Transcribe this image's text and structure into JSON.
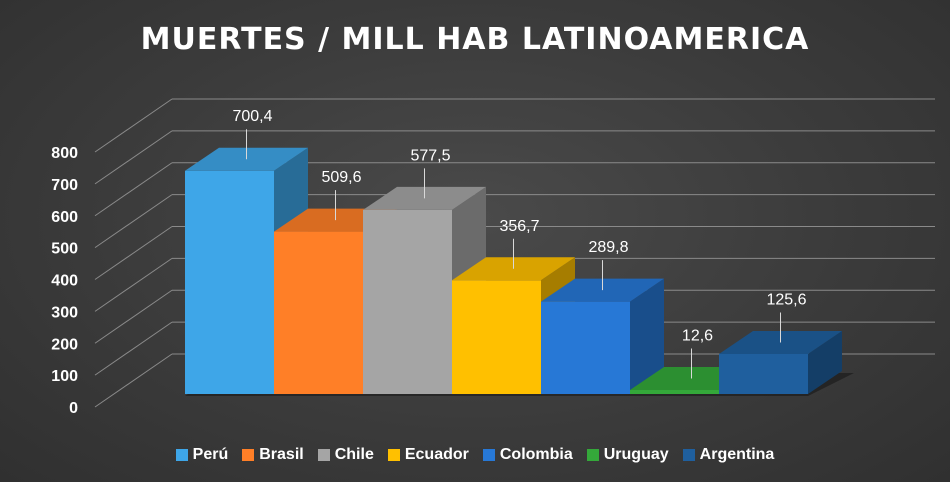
{
  "chart_data": {
    "type": "bar",
    "title": "MUERTES / MILL HAB LATINOAMERICA",
    "categories": [
      "Perú",
      "Brasil",
      "Chile",
      "Ecuador",
      "Colombia",
      "Uruguay",
      "Argentina"
    ],
    "values": [
      700.4,
      509.6,
      577.5,
      356.7,
      289.8,
      12.6,
      125.6
    ],
    "value_labels": [
      "700,4",
      "509,6",
      "577,5",
      "356,7",
      "289,8",
      "12,6",
      "125,6"
    ],
    "colors": [
      "#3ea6e8",
      "#ff7f27",
      "#a5a5a5",
      "#ffc000",
      "#2778d6",
      "#34a83a",
      "#1f5f9e"
    ],
    "ylim": [
      0,
      800
    ],
    "yticks": [
      0,
      100,
      200,
      300,
      400,
      500,
      600,
      700,
      800
    ],
    "grid": true,
    "legend_position": "bottom",
    "style": "3d-column"
  }
}
